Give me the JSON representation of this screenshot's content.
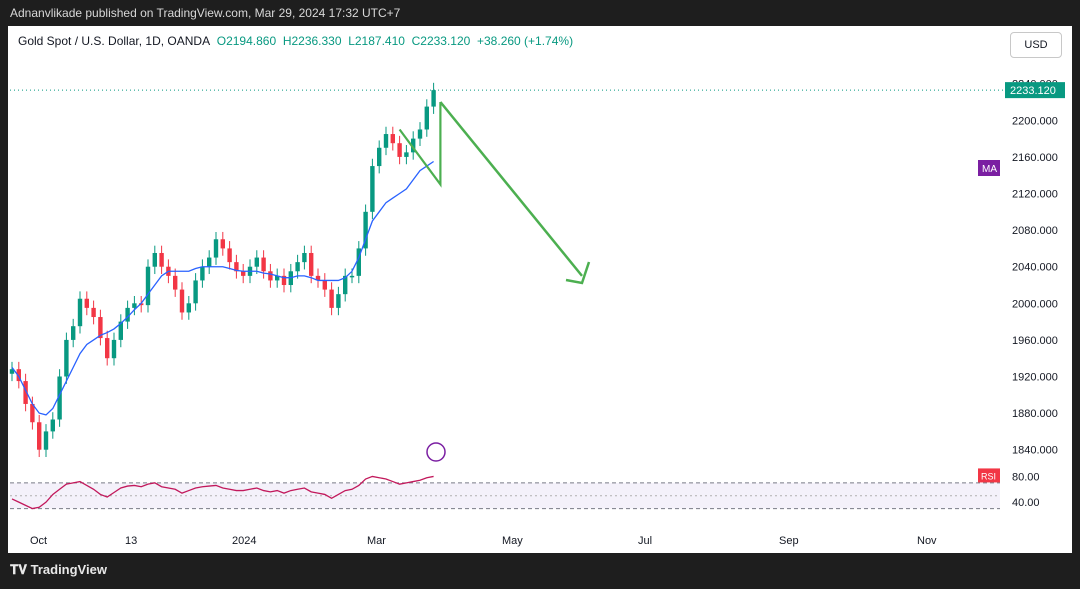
{
  "header": {
    "text": "Adnanvlikade published on TradingView.com, Mar 29, 2024 17:32 UTC+7"
  },
  "legend": {
    "symbol": "Gold Spot / U.S. Dollar, 1D, OANDA",
    "open": "O2194.860",
    "high": "H2236.330",
    "low": "L2187.410",
    "close": "C2233.120",
    "change": "+38.260 (+1.74%)"
  },
  "currency_button": "USD",
  "price_badge": "2233.120",
  "ma_badge": "MA",
  "rsi_badge": "RSI",
  "footer": {
    "logo": "TradingView"
  },
  "colors": {
    "up": "#089981",
    "down": "#f23645",
    "ma": "#2962ff",
    "rsi": "#c2185b",
    "arrow": "#4caf50",
    "badge_ma": "#7b1fa2"
  },
  "chart_data": {
    "type": "candlestick",
    "y_ticks": [
      "2240.000",
      "2200.000",
      "2160.000",
      "2120.000",
      "2080.000",
      "2040.000",
      "2000.000",
      "1960.000",
      "1920.000",
      "1880.000",
      "1840.000"
    ],
    "rsi_ticks": [
      "80.00",
      "40.00"
    ],
    "x_ticks": [
      "Oct",
      "13",
      "2024",
      "Mar",
      "May",
      "Jul",
      "Sep",
      "Nov"
    ],
    "ylim": [
      1820,
      2255
    ],
    "closes": [
      1928,
      1915,
      1890,
      1870,
      1840,
      1860,
      1873,
      1920,
      1960,
      1975,
      2005,
      1995,
      1985,
      1962,
      1940,
      1960,
      1980,
      1995,
      2000,
      1998,
      2040,
      2055,
      2040,
      2030,
      2015,
      1990,
      2000,
      2025,
      2040,
      2050,
      2070,
      2060,
      2045,
      2035,
      2030,
      2040,
      2050,
      2035,
      2025,
      2030,
      2020,
      2035,
      2045,
      2055,
      2030,
      2025,
      2015,
      1995,
      2010,
      2030,
      2030,
      2060,
      2100,
      2150,
      2170,
      2185,
      2175,
      2160,
      2165,
      2180,
      2190,
      2215,
      2233
    ],
    "ma": [
      1930,
      1920,
      1905,
      1890,
      1880,
      1878,
      1885,
      1900,
      1915,
      1930,
      1945,
      1955,
      1960,
      1965,
      1968,
      1972,
      1978,
      1985,
      1993,
      2000,
      2010,
      2020,
      2030,
      2035,
      2035,
      2035,
      2035,
      2038,
      2040,
      2040,
      2040,
      2040,
      2038,
      2036,
      2035,
      2035,
      2035,
      2033,
      2032,
      2030,
      2028,
      2028,
      2030,
      2030,
      2028,
      2025,
      2025,
      2025,
      2025,
      2028,
      2035,
      2050,
      2070,
      2090,
      2100,
      2110,
      2115,
      2120,
      2125,
      2135,
      2145,
      2150,
      2155
    ],
    "rsi": [
      45,
      40,
      35,
      30,
      32,
      40,
      52,
      60,
      68,
      70,
      72,
      66,
      60,
      52,
      48,
      55,
      62,
      65,
      66,
      64,
      68,
      70,
      64,
      62,
      60,
      54,
      58,
      62,
      64,
      65,
      66,
      62,
      60,
      58,
      58,
      60,
      62,
      58,
      56,
      58,
      54,
      58,
      60,
      62,
      56,
      54,
      52,
      46,
      52,
      58,
      60,
      66,
      76,
      80,
      78,
      76,
      72,
      68,
      70,
      72,
      74,
      78,
      80
    ]
  }
}
